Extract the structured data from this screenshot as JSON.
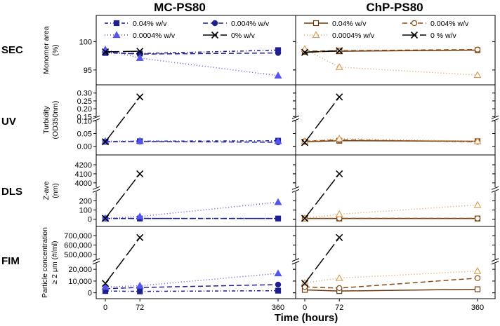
{
  "figure": {
    "x_axis_title": "Time (hours)",
    "columns": [
      "MC-PS80",
      "ChP-PS80"
    ],
    "rows": [
      "SEC",
      "UV",
      "DLS",
      "FIM"
    ]
  },
  "legends": {
    "MC-PS80": [
      "0.04% w/v",
      "0.004% w/v",
      "0.0004% w/v",
      "0% w/v"
    ],
    "ChP-PS80": [
      "0.04% w/v",
      "0.004% w/v",
      "0.0004% w/v",
      "0 % w/v"
    ]
  },
  "styles": {
    "MC-PS80": {
      "0.04": {
        "color": "#1f1f8f",
        "marker": "square",
        "fill": true,
        "dash": "5,3,1,3"
      },
      "0.004": {
        "color": "#1f1f8f",
        "marker": "circle",
        "fill": true,
        "dash": "7,4"
      },
      "0.0004": {
        "color": "#5555ee",
        "marker": "triangle",
        "fill": true,
        "dash": "1,3"
      },
      "0": {
        "color": "#000000",
        "marker": "x",
        "fill": false,
        "dash": "20,5"
      }
    },
    "ChP-PS80": {
      "0.04": {
        "color": "#6b3a10",
        "marker": "square",
        "fill": false,
        "dash": ""
      },
      "0.004": {
        "color": "#8b4a13",
        "marker": "circle",
        "fill": false,
        "dash": "7,4"
      },
      "0.0004": {
        "color": "#d9a15b",
        "marker": "triangle",
        "fill": false,
        "dash": "1,3"
      },
      "0": {
        "color": "#000000",
        "marker": "x",
        "fill": false,
        "dash": "20,5"
      }
    }
  },
  "chart_data": [
    {
      "type": "line",
      "panel": "SEC",
      "column": "MC-PS80",
      "ylabel": "Monomer area (%)",
      "ylim": [
        93,
        104
      ],
      "yticks": [
        "95",
        "100"
      ],
      "x": [
        0,
        72,
        360
      ],
      "xticks": [
        "0",
        "72",
        "360"
      ],
      "series": [
        {
          "name": "0.04% w/v",
          "values": [
            98.0,
            97.9,
            98.5
          ]
        },
        {
          "name": "0.004% w/v",
          "values": [
            98.1,
            97.8,
            98.0
          ]
        },
        {
          "name": "0.0004% w/v",
          "values": [
            98.6,
            97.1,
            94.0
          ]
        },
        {
          "name": "0% w/v",
          "values": [
            98.2,
            98.3,
            null
          ]
        }
      ]
    },
    {
      "type": "line",
      "panel": "SEC",
      "column": "ChP-PS80",
      "ylabel": "Monomer area (%)",
      "ylim": [
        93,
        104
      ],
      "yticks": [
        "95",
        "100"
      ],
      "x": [
        0,
        72,
        360
      ],
      "xticks": [
        "0",
        "72",
        "360"
      ],
      "series": [
        {
          "name": "0.04% w/v",
          "values": [
            98.2,
            98.3,
            98.5
          ]
        },
        {
          "name": "0.004% w/v",
          "values": [
            98.3,
            98.4,
            98.6
          ]
        },
        {
          "name": "0.0004% w/v",
          "values": [
            98.7,
            95.5,
            94.1
          ]
        },
        {
          "name": "0 % w/v",
          "values": [
            98.1,
            98.4,
            null
          ]
        }
      ]
    },
    {
      "type": "line",
      "panel": "UV",
      "column": "MC-PS80",
      "ylabel": "Turbidity (OD350nm)",
      "y_break": [
        0.1,
        0.15
      ],
      "ylim": [
        -0.02,
        0.33
      ],
      "yticks": [
        "0.00",
        "0.05",
        "0.10",
        "0.15",
        "0.20",
        "0.25",
        "0.30"
      ],
      "x": [
        0,
        72,
        360
      ],
      "xticks": [
        "0",
        "72",
        "360"
      ],
      "series": [
        {
          "name": "0.04% w/v",
          "values": [
            0.018,
            0.02,
            0.022
          ]
        },
        {
          "name": "0.004% w/v",
          "values": [
            0.018,
            0.019,
            0.016
          ]
        },
        {
          "name": "0.0004% w/v",
          "values": [
            0.02,
            0.021,
            0.02
          ]
        },
        {
          "name": "0% w/v",
          "values": [
            0.018,
            0.275,
            null
          ]
        }
      ]
    },
    {
      "type": "line",
      "panel": "UV",
      "column": "ChP-PS80",
      "ylabel": "Turbidity (OD350nm)",
      "y_break": [
        0.1,
        0.15
      ],
      "ylim": [
        -0.02,
        0.33
      ],
      "yticks": [
        "0.00",
        "0.05",
        "0.10",
        "0.15",
        "0.20",
        "0.25",
        "0.30"
      ],
      "x": [
        0,
        72,
        360
      ],
      "xticks": [
        "0",
        "72",
        "360"
      ],
      "series": [
        {
          "name": "0.04% w/v",
          "values": [
            0.018,
            0.022,
            0.02
          ]
        },
        {
          "name": "0.004% w/v",
          "values": [
            0.02,
            0.025,
            0.018
          ]
        },
        {
          "name": "0.0004% w/v",
          "values": [
            0.02,
            0.03,
            0.02
          ]
        },
        {
          "name": "0 % w/v",
          "values": [
            0.015,
            0.275,
            null
          ]
        }
      ]
    },
    {
      "type": "line",
      "panel": "DLS",
      "column": "MC-PS80",
      "ylabel": "Z-ave (nm)",
      "y_break": [
        300,
        3950
      ],
      "ylim": [
        -40,
        4270
      ],
      "yticks": [
        "0",
        "100",
        "200",
        "4000",
        "4100",
        "4200"
      ],
      "x": [
        0,
        72,
        360
      ],
      "xticks": [
        "0",
        "72",
        "360"
      ],
      "series": [
        {
          "name": "0.04% w/v",
          "values": [
            8,
            8,
            8
          ]
        },
        {
          "name": "0.004% w/v",
          "values": [
            8,
            9,
            8
          ]
        },
        {
          "name": "0.0004% w/v",
          "values": [
            10,
            30,
            185
          ]
        },
        {
          "name": "0% w/v",
          "values": [
            10,
            4100,
            null
          ]
        }
      ]
    },
    {
      "type": "line",
      "panel": "DLS",
      "column": "ChP-PS80",
      "ylabel": "Z-ave (nm)",
      "y_break": [
        300,
        3950
      ],
      "ylim": [
        -40,
        4270
      ],
      "yticks": [
        "0",
        "100",
        "200",
        "4000",
        "4100",
        "4200"
      ],
      "x": [
        0,
        72,
        360
      ],
      "xticks": [
        "0",
        "72",
        "360"
      ],
      "series": [
        {
          "name": "0.04% w/v",
          "values": [
            8,
            8,
            8
          ]
        },
        {
          "name": "0.004% w/v",
          "values": [
            8,
            9,
            9
          ]
        },
        {
          "name": "0.0004% w/v",
          "values": [
            10,
            55,
            155
          ]
        },
        {
          "name": "0 % w/v",
          "values": [
            10,
            4100,
            null
          ]
        }
      ]
    },
    {
      "type": "line",
      "panel": "FIM",
      "column": "MC-PS80",
      "ylabel": "Particle concentration ≥ 2 μm (#/ml)",
      "y_break": [
        25000,
        450000
      ],
      "ylim": [
        -2000,
        760000
      ],
      "yticks": [
        "0",
        "10,000",
        "20,000",
        "500,000",
        "600,000",
        "700,000"
      ],
      "x": [
        0,
        72,
        360
      ],
      "xticks": [
        "0",
        "72",
        "360"
      ],
      "series": [
        {
          "name": "0.04% w/v",
          "values": [
            1500,
            1200,
            1800
          ]
        },
        {
          "name": "0.004% w/v",
          "values": [
            3500,
            4500,
            7000
          ]
        },
        {
          "name": "0.0004% w/v",
          "values": [
            5000,
            6000,
            16500
          ]
        },
        {
          "name": "0% w/v",
          "values": [
            8000,
            680000,
            null
          ]
        }
      ]
    },
    {
      "type": "line",
      "panel": "FIM",
      "column": "ChP-PS80",
      "ylabel": "Particle concentration ≥ 2 μm (#/ml)",
      "y_break": [
        25000,
        450000
      ],
      "ylim": [
        -2000,
        760000
      ],
      "yticks": [
        "0",
        "10,000",
        "20,000",
        "500,000",
        "600,000",
        "700,000"
      ],
      "x": [
        0,
        72,
        360
      ],
      "xticks": [
        "0",
        "72",
        "360"
      ],
      "series": [
        {
          "name": "0.04% w/v",
          "values": [
            2500,
            1500,
            3000
          ]
        },
        {
          "name": "0.004% w/v",
          "values": [
            5000,
            4000,
            12500
          ]
        },
        {
          "name": "0.0004% w/v",
          "values": [
            8500,
            12500,
            18500
          ]
        },
        {
          "name": "0 % w/v",
          "values": [
            8000,
            680000,
            null
          ]
        }
      ]
    }
  ]
}
